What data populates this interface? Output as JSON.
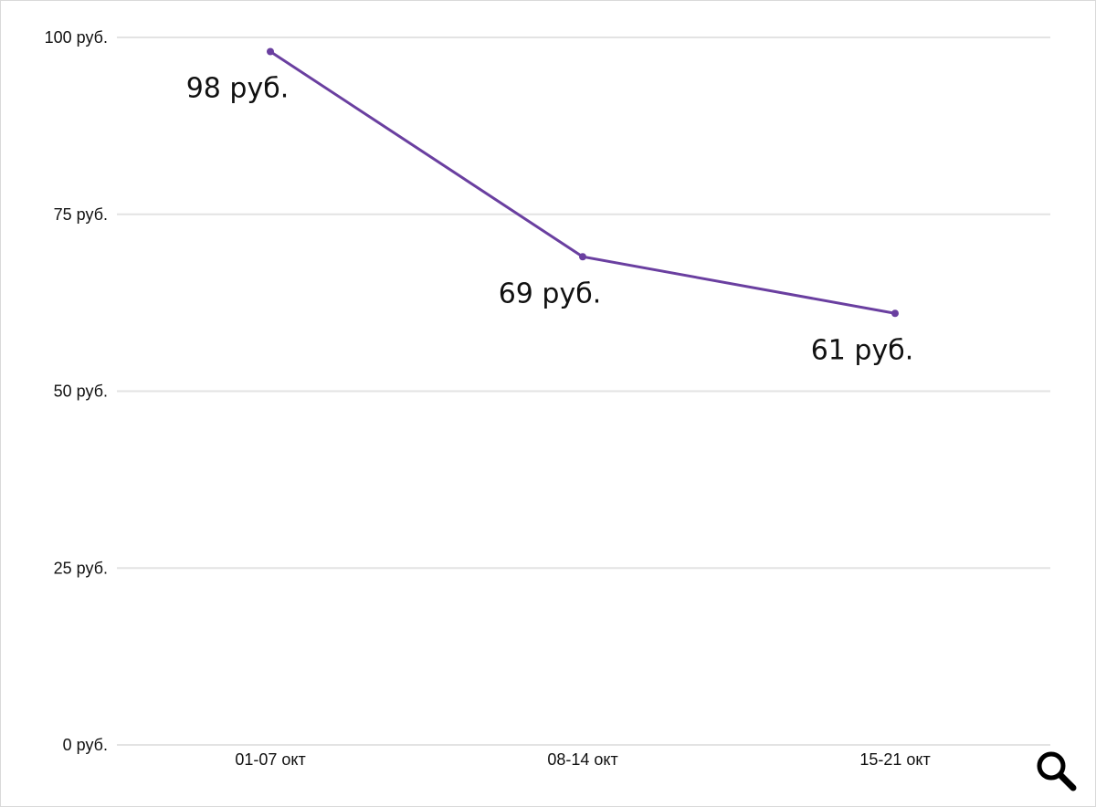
{
  "chart_data": {
    "type": "line",
    "categories": [
      "01-07 окт",
      "08-14 окт",
      "15-21 окт"
    ],
    "series": [
      {
        "values": [
          98,
          69,
          61
        ],
        "color": "#6a3fa0"
      }
    ],
    "data_labels": [
      "98 руб.",
      "69 руб.",
      "61 руб."
    ],
    "yticks": [
      {
        "value": 100,
        "label": "100 руб."
      },
      {
        "value": 75,
        "label": "75 руб."
      },
      {
        "value": 50,
        "label": "50 руб."
      },
      {
        "value": 25,
        "label": "25 руб."
      },
      {
        "value": 0,
        "label": "0 руб."
      }
    ],
    "ylim": [
      0,
      100
    ],
    "title": "",
    "xlabel": "",
    "ylabel": "",
    "grid": true,
    "legend": "none"
  },
  "controls": {
    "zoom_icon": "magnifier-icon"
  }
}
